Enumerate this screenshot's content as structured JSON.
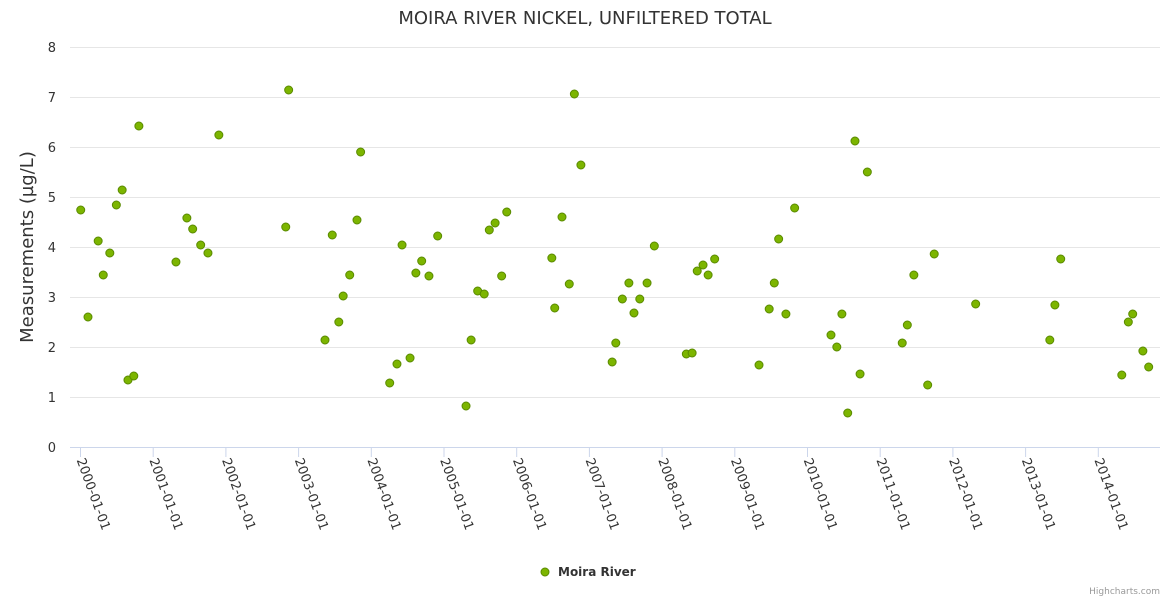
{
  "chart_data": {
    "type": "scatter",
    "title": "MOIRA RIVER NICKEL, UNFILTERED TOTAL",
    "xlabel": "",
    "ylabel": "Measurements (µg/L)",
    "ylim": [
      0,
      8
    ],
    "yticks": [
      "0",
      "1",
      "2",
      "3",
      "4",
      "5",
      "6",
      "7",
      "8"
    ],
    "xlim": [
      2000.0,
      2014.85
    ],
    "xticks": [
      {
        "value": 2000,
        "label": "2000-01-01"
      },
      {
        "value": 2001,
        "label": "2001-01-01"
      },
      {
        "value": 2002,
        "label": "2002-01-01"
      },
      {
        "value": 2003,
        "label": "2003-01-01"
      },
      {
        "value": 2004,
        "label": "2004-01-01"
      },
      {
        "value": 2005,
        "label": "2005-01-01"
      },
      {
        "value": 2006,
        "label": "2006-01-01"
      },
      {
        "value": 2007,
        "label": "2007-01-01"
      },
      {
        "value": 2008,
        "label": "2008-01-01"
      },
      {
        "value": 2009,
        "label": "2009-01-01"
      },
      {
        "value": 2010,
        "label": "2010-01-01"
      },
      {
        "value": 2011,
        "label": "2011-01-01"
      },
      {
        "value": 2012,
        "label": "2012-01-01"
      },
      {
        "value": 2013,
        "label": "2013-01-01"
      },
      {
        "value": 2014,
        "label": "2014-01-01"
      }
    ],
    "grid": true,
    "legend_position": "bottom-center",
    "series": [
      {
        "name": "Moira River",
        "color": "#7cb500",
        "points": [
          [
            2000.01,
            4.74
          ],
          [
            2000.11,
            2.6
          ],
          [
            2000.25,
            4.12
          ],
          [
            2000.32,
            3.44
          ],
          [
            2000.41,
            3.88
          ],
          [
            2000.5,
            4.84
          ],
          [
            2000.58,
            5.14
          ],
          [
            2000.66,
            1.34
          ],
          [
            2000.74,
            1.42
          ],
          [
            2000.81,
            6.42
          ],
          [
            2001.32,
            3.7
          ],
          [
            2001.47,
            4.58
          ],
          [
            2001.55,
            4.36
          ],
          [
            2001.66,
            4.04
          ],
          [
            2001.76,
            3.88
          ],
          [
            2001.91,
            6.24
          ],
          [
            2002.83,
            4.4
          ],
          [
            2002.87,
            7.14
          ],
          [
            2003.37,
            2.14
          ],
          [
            2003.47,
            4.24
          ],
          [
            2003.56,
            2.5
          ],
          [
            2003.62,
            3.02
          ],
          [
            2003.71,
            3.44
          ],
          [
            2003.81,
            4.54
          ],
          [
            2003.86,
            5.9
          ],
          [
            2004.26,
            1.28
          ],
          [
            2004.36,
            1.66
          ],
          [
            2004.43,
            4.04
          ],
          [
            2004.54,
            1.78
          ],
          [
            2004.62,
            3.48
          ],
          [
            2004.7,
            3.72
          ],
          [
            2004.8,
            3.42
          ],
          [
            2004.92,
            4.22
          ],
          [
            2005.31,
            0.82
          ],
          [
            2005.38,
            2.14
          ],
          [
            2005.47,
            3.12
          ],
          [
            2005.56,
            3.06
          ],
          [
            2005.63,
            4.34
          ],
          [
            2005.71,
            4.48
          ],
          [
            2005.8,
            3.42
          ],
          [
            2005.87,
            4.7
          ],
          [
            2006.49,
            3.78
          ],
          [
            2006.53,
            2.78
          ],
          [
            2006.63,
            4.6
          ],
          [
            2006.73,
            3.26
          ],
          [
            2006.8,
            7.06
          ],
          [
            2006.89,
            5.64
          ],
          [
            2007.32,
            1.7
          ],
          [
            2007.37,
            2.08
          ],
          [
            2007.46,
            2.96
          ],
          [
            2007.55,
            3.28
          ],
          [
            2007.62,
            2.68
          ],
          [
            2007.7,
            2.96
          ],
          [
            2007.8,
            3.28
          ],
          [
            2007.9,
            4.02
          ],
          [
            2008.34,
            1.86
          ],
          [
            2008.42,
            1.88
          ],
          [
            2008.49,
            3.52
          ],
          [
            2008.57,
            3.64
          ],
          [
            2008.64,
            3.44
          ],
          [
            2008.73,
            3.76
          ],
          [
            2009.34,
            1.64
          ],
          [
            2009.48,
            2.76
          ],
          [
            2009.55,
            3.28
          ],
          [
            2009.61,
            4.16
          ],
          [
            2009.71,
            2.66
          ],
          [
            2009.83,
            4.78
          ],
          [
            2010.33,
            2.24
          ],
          [
            2010.41,
            2.0
          ],
          [
            2010.48,
            2.66
          ],
          [
            2010.56,
            0.68
          ],
          [
            2010.66,
            6.12
          ],
          [
            2010.73,
            1.46
          ],
          [
            2010.83,
            5.5
          ],
          [
            2011.31,
            2.08
          ],
          [
            2011.38,
            2.44
          ],
          [
            2011.47,
            3.44
          ],
          [
            2011.66,
            1.24
          ],
          [
            2011.75,
            3.86
          ],
          [
            2012.32,
            2.86
          ],
          [
            2013.34,
            2.14
          ],
          [
            2013.41,
            2.84
          ],
          [
            2013.49,
            3.76
          ],
          [
            2014.33,
            1.44
          ],
          [
            2014.42,
            2.5
          ],
          [
            2014.48,
            2.66
          ],
          [
            2014.62,
            1.92
          ],
          [
            2014.7,
            1.6
          ]
        ]
      }
    ]
  },
  "credits": "Highcharts.com"
}
